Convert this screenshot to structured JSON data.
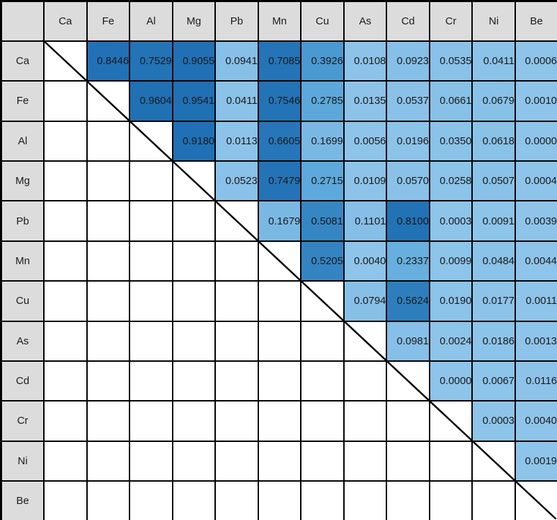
{
  "chart_data": {
    "type": "heatmap",
    "title": "",
    "description": "Upper-triangle correlation matrix of elements; cell shading darkens with value",
    "elements": [
      "Ca",
      "Fe",
      "Al",
      "Mg",
      "Pb",
      "Mn",
      "Cu",
      "As",
      "Cd",
      "Cr",
      "Ni",
      "Be"
    ],
    "corner_label": "",
    "upper_triangle_values": [
      [
        null,
        "0.8446",
        "0.7529",
        "0.9055",
        "0.0941",
        "0.7085",
        "0.3926",
        "0.0108",
        "0.0923",
        "0.0535",
        "0.0411",
        "0.0006"
      ],
      [
        null,
        null,
        "0.9604",
        "0.9541",
        "0.0411",
        "0.7546",
        "0.2785",
        "0.0135",
        "0.0537",
        "0.0661",
        "0.0679",
        "0.0010"
      ],
      [
        null,
        null,
        null,
        "0.9180",
        "0.0113",
        "0.6605",
        "0.1699",
        "0.0056",
        "0.0196",
        "0.0350",
        "0.0618",
        "0.0000"
      ],
      [
        null,
        null,
        null,
        null,
        "0.0523",
        "0.7479",
        "0.2715",
        "0.0109",
        "0.0570",
        "0.0258",
        "0.0507",
        "0.0004"
      ],
      [
        null,
        null,
        null,
        null,
        null,
        "0.1679",
        "0.5081",
        "0.1101",
        "0.8100",
        "0.0003",
        "0.0091",
        "0.0039"
      ],
      [
        null,
        null,
        null,
        null,
        null,
        null,
        "0.5205",
        "0.0040",
        "0.2337",
        "0.0099",
        "0.0484",
        "0.0044"
      ],
      [
        null,
        null,
        null,
        null,
        null,
        null,
        null,
        "0.0794",
        "0.5624",
        "0.0190",
        "0.0177",
        "0.0011"
      ],
      [
        null,
        null,
        null,
        null,
        null,
        null,
        null,
        null,
        "0.0981",
        "0.0024",
        "0.0186",
        "0.0013"
      ],
      [
        null,
        null,
        null,
        null,
        null,
        null,
        null,
        null,
        null,
        "0.0000",
        "0.0067",
        "0.0116"
      ],
      [
        null,
        null,
        null,
        null,
        null,
        null,
        null,
        null,
        null,
        null,
        "0.0003",
        "0.0040"
      ],
      [
        null,
        null,
        null,
        null,
        null,
        null,
        null,
        null,
        null,
        null,
        null,
        "0.0019"
      ],
      [
        null,
        null,
        null,
        null,
        null,
        null,
        null,
        null,
        null,
        null,
        null,
        null
      ]
    ],
    "value_range": [
      0,
      1
    ]
  },
  "colors": {
    "header_bg": "#DCDCDC",
    "grid_line": "#000000",
    "diagonal_line": "#000000",
    "cell_text": "#1A1A1A",
    "empty_cell_bg": "#FFFFFF",
    "scale": [
      {
        "v": 0.0,
        "c": "#8EC4E9"
      },
      {
        "v": 0.12,
        "c": "#84BEE6"
      },
      {
        "v": 0.18,
        "c": "#78B7E3"
      },
      {
        "v": 0.25,
        "c": "#62ACDD"
      },
      {
        "v": 0.32,
        "c": "#53A2D8"
      },
      {
        "v": 0.42,
        "c": "#4796CF"
      },
      {
        "v": 0.53,
        "c": "#3282C1"
      },
      {
        "v": 0.6,
        "c": "#2979BB"
      },
      {
        "v": 0.72,
        "c": "#2473B7"
      },
      {
        "v": 1.0,
        "c": "#1F6FB4"
      }
    ]
  }
}
